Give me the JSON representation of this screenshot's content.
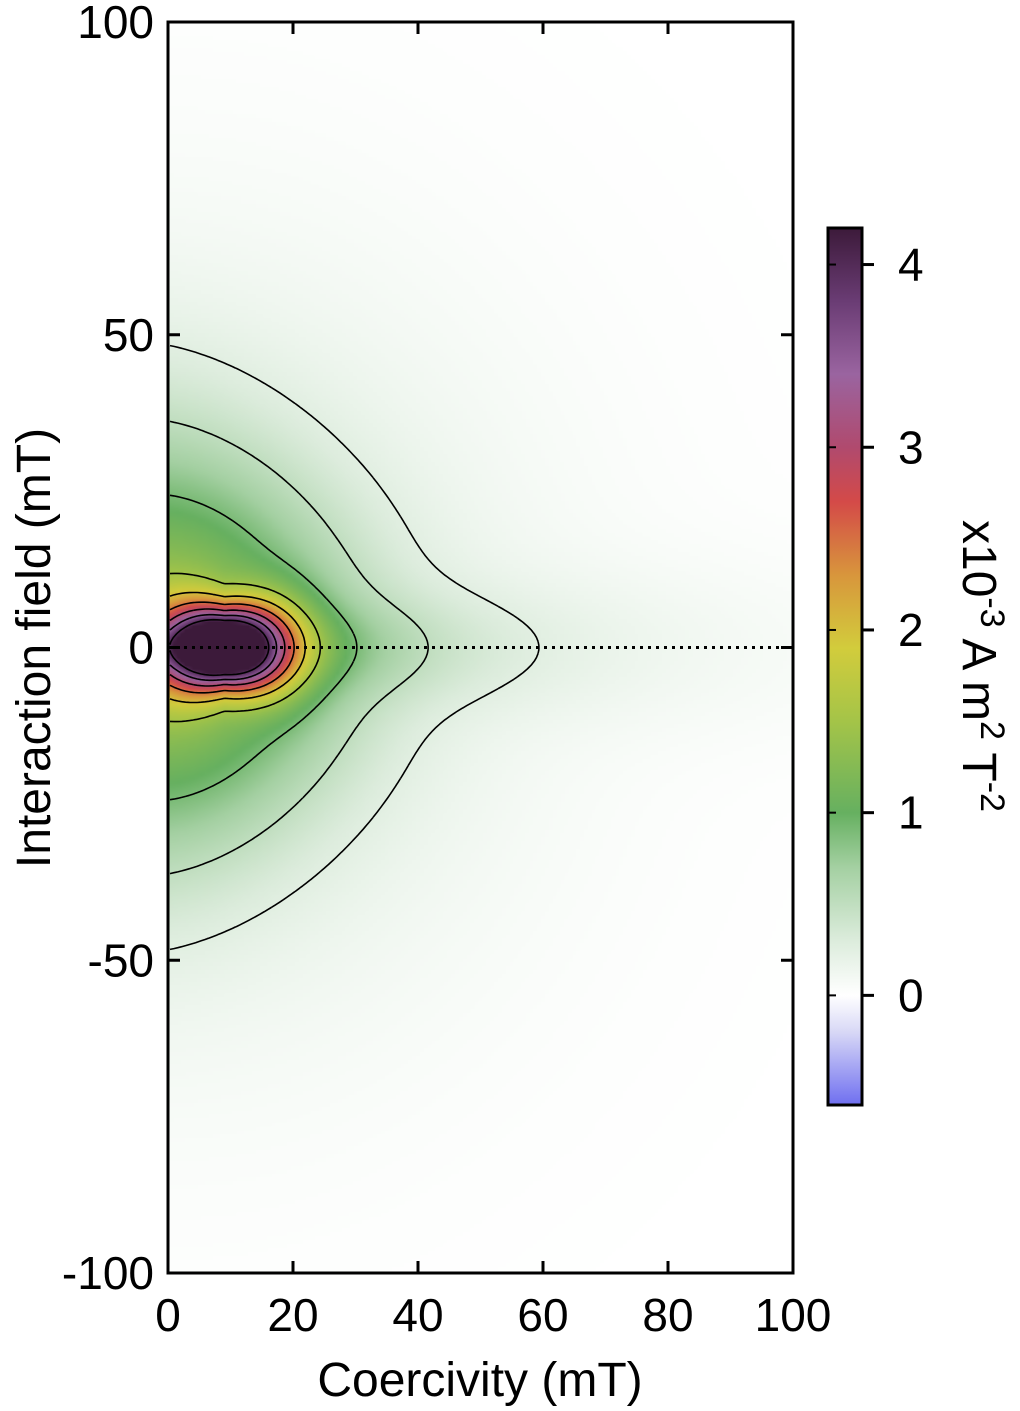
{
  "chart_data": {
    "type": "heatmap",
    "title": "",
    "xlabel": "Coercivity (mT)",
    "ylabel": "Interaction field (mT)",
    "xlim": [
      0,
      100
    ],
    "ylim": [
      -100,
      100
    ],
    "xticks": [
      0,
      20,
      40,
      60,
      80,
      100
    ],
    "yticks": [
      -100,
      -50,
      0,
      50,
      100
    ],
    "xtick_labels": [
      "0",
      "20",
      "40",
      "60",
      "80",
      "100"
    ],
    "ytick_labels": [
      "-100",
      "-50",
      "0",
      "50",
      "100"
    ],
    "reference_line": {
      "axis": "y",
      "value": 0,
      "style": "dotted"
    },
    "peak": {
      "x": 9,
      "y": 0,
      "value": 4.1
    },
    "contour_levels": [
      0.25,
      0.5,
      0.9,
      1.5,
      2.0,
      2.5,
      3.0,
      3.5,
      4.0
    ],
    "colorbar": {
      "label_base": "x10",
      "label_exp1": "-3",
      "label_unit_a": " A m",
      "label_exp2": "2",
      "label_unit_t": " T",
      "label_exp3": "-2",
      "range": [
        -0.6,
        4.2
      ],
      "ticks": [
        0,
        1,
        2,
        3,
        4
      ],
      "tick_labels": [
        "0",
        "1",
        "2",
        "3",
        "4"
      ],
      "stops": [
        {
          "value": -0.6,
          "color": "#6f6ff0"
        },
        {
          "value": -0.2,
          "color": "#d8d8f6"
        },
        {
          "value": 0.0,
          "color": "#ffffff"
        },
        {
          "value": 0.3,
          "color": "#dcecdc"
        },
        {
          "value": 0.7,
          "color": "#a4d0a2"
        },
        {
          "value": 1.0,
          "color": "#66b060"
        },
        {
          "value": 1.5,
          "color": "#a4c448"
        },
        {
          "value": 1.9,
          "color": "#d2cc3c"
        },
        {
          "value": 2.3,
          "color": "#d8963c"
        },
        {
          "value": 2.7,
          "color": "#d44a48"
        },
        {
          "value": 3.0,
          "color": "#b04a6e"
        },
        {
          "value": 3.4,
          "color": "#9a64a0"
        },
        {
          "value": 3.8,
          "color": "#6a3c74"
        },
        {
          "value": 4.2,
          "color": "#3c1a3a"
        }
      ]
    },
    "field_model": {
      "main_peak": {
        "amplitude": 4.1,
        "x_center": 9,
        "y_center": 0,
        "x_width": 10,
        "y_width_at_center": 6,
        "y_width_growth": 0.05
      },
      "broad": {
        "amplitude": 1.25,
        "x_center": 0,
        "x_width": 24,
        "y_width": 30,
        "x_tail_factor": 0.8
      },
      "ridge": {
        "amplitude": 0.55,
        "x_decay": 45,
        "y_width": 3.5
      },
      "tail": {
        "amplitude": 0.3,
        "x_width": 55,
        "y_width": 60
      }
    }
  }
}
